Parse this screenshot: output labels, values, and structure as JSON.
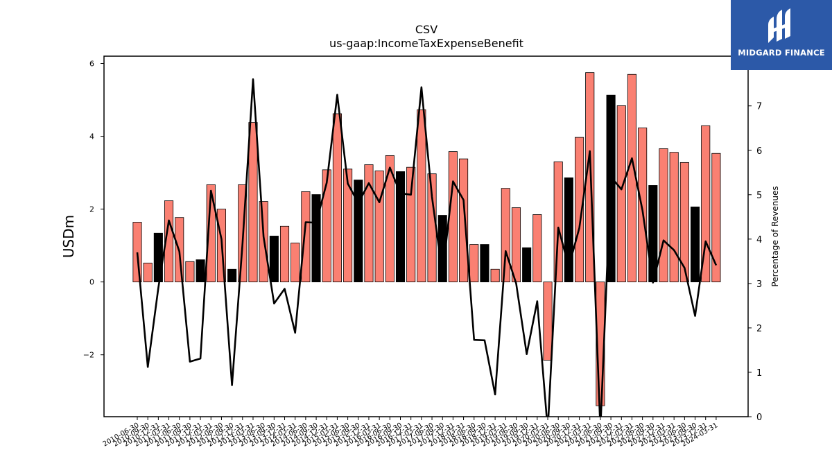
{
  "logo": {
    "text": "MIDGARD FINANCE",
    "background": "#2c59a8"
  },
  "chart_data": {
    "type": "bar",
    "title": "CSV",
    "subtitle": "us-gaap:IncomeTaxExpenseBenefit",
    "ylabel": "USDm",
    "ylabel_right": "Percentage of Revenues",
    "ylim": [
      -3.7,
      6.2
    ],
    "ylim_right": [
      0,
      8.12
    ],
    "yticks": [
      -2,
      0,
      2,
      4,
      6
    ],
    "yticks_right": [
      0,
      1,
      2,
      3,
      4,
      5,
      6,
      7
    ],
    "colors": {
      "q4": "#000000",
      "other": "#fa8072",
      "line": "#000000"
    },
    "categories": [
      "2010-06-30",
      "2010-09-30",
      "2010-12-31",
      "2011-03-31",
      "2011-06-30",
      "2011-09-30",
      "2011-12-31",
      "2012-03-31",
      "2012-06-30",
      "2012-09-30",
      "2012-12-31",
      "2013-03-31",
      "2013-06-30",
      "2013-09-30",
      "2013-12-31",
      "2014-03-31",
      "2014-06-30",
      "2014-09-30",
      "2014-12-31",
      "2015-03-31",
      "2015-06-30",
      "2015-09-30",
      "2015-12-31",
      "2016-03-31",
      "2016-06-30",
      "2016-09-30",
      "2016-12-31",
      "2017-03-31",
      "2017-06-30",
      "2017-09-30",
      "2017-12-31",
      "2018-03-31",
      "2018-06-30",
      "2018-09-30",
      "2018-12-31",
      "2019-03-31",
      "2019-06-30",
      "2019-09-30",
      "2019-12-31",
      "2020-03-31",
      "2020-06-30",
      "2020-09-30",
      "2020-12-31",
      "2021-03-31",
      "2021-06-30",
      "2021-09-30",
      "2021-12-31",
      "2022-03-31",
      "2022-06-30",
      "2022-09-30",
      "2022-12-31",
      "2023-03-31",
      "2023-06-30",
      "2023-09-30",
      "2023-12-31",
      "2024-03-31"
    ],
    "xtick_labels": [
      "2010-06-30",
      "2010-09-30",
      "2010-12-31",
      "2011-03-31",
      "2011-06-30",
      "2011-09-30",
      "2011-12-31",
      "2012-03-31",
      "2012-06-30",
      "2012-09-30",
      "2012-12-31",
      "2013-03-31",
      "2013-06-30",
      "2013-09-30",
      "2013-12-31",
      "2014-03-31",
      "2014-06-30",
      "2014-09-30",
      "2014-12-31",
      "2015-03-31",
      "2015-06-30",
      "2015-09-30",
      "2015-12-31",
      "2016-03-31",
      "2016-06-30",
      "2016-09-30",
      "2016-12-31",
      "2017-03-31",
      "2017-06-30",
      "2017-09-30",
      "2017-12-31",
      "2018-03-31",
      "2018-06-30",
      "2018-09-30",
      "2018-12-31",
      "2019-03-31",
      "2019-06-30",
      "2019-09-30",
      "2019-12-31",
      "2020-03-31",
      "2020-06-30",
      "2020-09-30",
      "2020-12-31",
      "2021-03-31",
      "2021-06-30",
      "2021-09-30",
      "2021-12-31",
      "2022-03-31",
      "2022-06-30",
      "2022-09-30",
      "2022-12-31",
      "2023-03-31",
      "2023-06-30",
      "2023-09-30",
      "2023-12-31",
      "2024-03-31"
    ],
    "series": [
      {
        "axis": "left",
        "type": "bar",
        "values": [
          1.64,
          0.52,
          1.34,
          2.23,
          1.77,
          0.56,
          0.61,
          2.67,
          2.0,
          0.35,
          2.67,
          4.38,
          2.21,
          1.26,
          1.53,
          1.07,
          2.48,
          2.4,
          3.08,
          4.62,
          3.1,
          2.8,
          3.22,
          3.05,
          3.47,
          3.03,
          3.15,
          4.73,
          2.97,
          1.83,
          3.58,
          3.38,
          1.03,
          1.03,
          0.35,
          2.57,
          2.04,
          0.94,
          1.85,
          -2.15,
          3.3,
          2.86,
          3.97,
          5.75,
          -3.4,
          5.13,
          4.84,
          5.7,
          4.23,
          2.65,
          3.66,
          3.56,
          3.28,
          2.06,
          4.29,
          3.53
        ],
        "q4_flags": [
          0,
          0,
          1,
          0,
          0,
          0,
          1,
          0,
          0,
          1,
          0,
          0,
          0,
          1,
          0,
          0,
          0,
          1,
          0,
          0,
          0,
          1,
          0,
          0,
          0,
          1,
          0,
          0,
          0,
          1,
          0,
          0,
          0,
          1,
          0,
          0,
          0,
          1,
          0,
          0,
          0,
          1,
          0,
          0,
          0,
          1,
          0,
          0,
          0,
          1,
          0,
          0,
          0,
          1,
          0,
          0
        ]
      },
      {
        "axis": "right",
        "type": "line",
        "values": [
          3.7,
          1.12,
          2.9,
          4.42,
          3.72,
          1.24,
          1.31,
          5.09,
          4.0,
          0.71,
          3.9,
          7.6,
          4.05,
          2.55,
          2.88,
          1.89,
          4.38,
          4.37,
          5.27,
          7.25,
          5.25,
          4.81,
          5.26,
          4.83,
          5.61,
          5.03,
          5.0,
          7.42,
          4.95,
          3.2,
          5.3,
          4.88,
          1.73,
          1.72,
          0.5,
          3.73,
          3.0,
          1.41,
          2.6,
          -0.3,
          4.26,
          3.38,
          4.25,
          5.98,
          -0.3,
          5.4,
          5.12,
          5.82,
          4.65,
          3.02,
          3.97,
          3.75,
          3.35,
          2.27,
          3.95,
          3.41
        ]
      }
    ]
  }
}
